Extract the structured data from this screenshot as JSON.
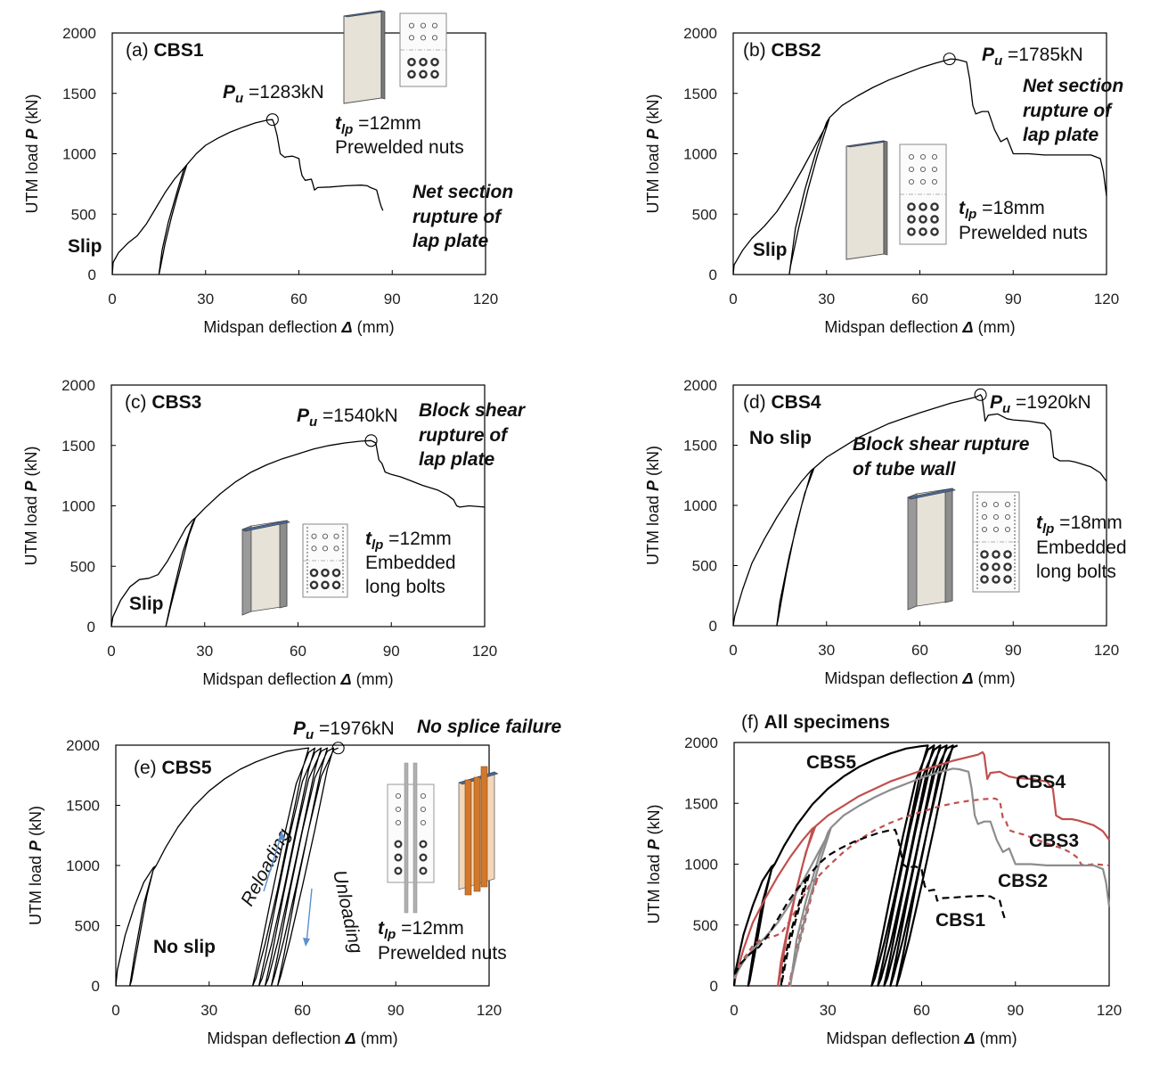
{
  "chart_data": [
    {
      "id": "a",
      "type": "line",
      "panel_label": "(a)",
      "title": "CBS1",
      "xlabel_main": "Midspan deflection ",
      "xlabel_sym": "Δ",
      "xlabel_unit": " (mm)",
      "ylabel_main": "UTM load ",
      "ylabel_sym": "P",
      "ylabel_unit": " (kN)",
      "xlim": [
        0,
        120
      ],
      "ylim": [
        0,
        2000
      ],
      "xticks": [
        "0",
        "30",
        "60",
        "90",
        "120"
      ],
      "yticks": [
        "0",
        "500",
        "1000",
        "1500",
        "2000"
      ],
      "series": [
        {
          "name": "CBS1",
          "color": "#000000",
          "dash": "none",
          "x": [
            0,
            0.3,
            2,
            5,
            8,
            11,
            14,
            17,
            20,
            23,
            24,
            23,
            21,
            18,
            16,
            15,
            15.5,
            17,
            19,
            21,
            23,
            24,
            27,
            30,
            34,
            38,
            42,
            46,
            50,
            51.5,
            52,
            53,
            54,
            55.5,
            56,
            58,
            60,
            60.5,
            61,
            62,
            64,
            64.5,
            65,
            66,
            70,
            75,
            80,
            82,
            83,
            85,
            86,
            86.5,
            87
          ],
          "y": [
            0,
            100,
            180,
            260,
            320,
            420,
            550,
            680,
            790,
            880,
            910,
            870,
            700,
            430,
            200,
            0,
            60,
            260,
            470,
            660,
            830,
            910,
            1000,
            1070,
            1130,
            1180,
            1220,
            1255,
            1280,
            1283,
            1250,
            1150,
            1000,
            970,
            975,
            980,
            960,
            880,
            820,
            780,
            790,
            750,
            700,
            720,
            725,
            735,
            740,
            735,
            720,
            700,
            600,
            560,
            530
          ]
        }
      ],
      "markers": [
        {
          "x": 51.5,
          "y": 1283
        }
      ],
      "annotations": [
        {
          "id": "pu",
          "text_pre": "P",
          "text_sub": "u",
          "text": "=1283kN"
        },
        {
          "id": "tlp",
          "text_pre": "t",
          "text_sub": "lp",
          "text": " =12mm"
        },
        {
          "id": "conn",
          "text": "Prewelded nuts"
        },
        {
          "id": "fail1",
          "text": "Net section"
        },
        {
          "id": "fail2",
          "text": "rupture of"
        },
        {
          "id": "fail3",
          "text": "lap plate"
        },
        {
          "id": "slip",
          "text": "Slip"
        }
      ]
    },
    {
      "id": "b",
      "type": "line",
      "panel_label": "(b)",
      "title": "CBS2",
      "xlabel_main": "Midspan deflection ",
      "xlabel_sym": "Δ",
      "xlabel_unit": " (mm)",
      "ylabel_main": "UTM load ",
      "ylabel_sym": "P",
      "ylabel_unit": " (kN)",
      "xlim": [
        0,
        120
      ],
      "ylim": [
        0,
        2000
      ],
      "xticks": [
        "0",
        "30",
        "60",
        "90",
        "120"
      ],
      "yticks": [
        "0",
        "500",
        "1000",
        "1500",
        "2000"
      ],
      "series": [
        {
          "name": "CBS2",
          "color": "#000000",
          "dash": "none",
          "x": [
            0,
            0.3,
            3,
            6,
            10,
            14,
            18,
            22,
            26,
            30,
            31,
            30,
            27,
            23,
            20,
            18,
            18.5,
            21,
            24,
            27,
            30,
            31,
            35,
            40,
            45,
            50,
            55,
            60,
            65,
            70,
            72,
            75,
            76,
            77,
            78,
            80,
            82,
            84,
            86,
            88,
            90,
            95,
            100,
            105,
            110,
            115,
            118,
            119,
            120
          ],
          "y": [
            0,
            80,
            200,
            300,
            400,
            520,
            680,
            860,
            1050,
            1240,
            1300,
            1260,
            1050,
            700,
            380,
            0,
            80,
            380,
            700,
            980,
            1220,
            1300,
            1400,
            1480,
            1550,
            1610,
            1660,
            1710,
            1750,
            1785,
            1780,
            1760,
            1620,
            1400,
            1330,
            1350,
            1350,
            1200,
            1100,
            1130,
            1000,
            1000,
            990,
            990,
            990,
            990,
            960,
            850,
            650
          ]
        }
      ],
      "markers": [
        {
          "x": 69.5,
          "y": 1785
        }
      ],
      "annotations": [
        {
          "id": "pu",
          "text_pre": "P",
          "text_sub": "u",
          "text": "=1785kN"
        },
        {
          "id": "tlp",
          "text_pre": "t",
          "text_sub": "lp",
          "text": " =18mm"
        },
        {
          "id": "conn",
          "text": "Prewelded nuts"
        },
        {
          "id": "fail1",
          "text": "Net section"
        },
        {
          "id": "fail2",
          "text": "rupture of"
        },
        {
          "id": "fail3",
          "text": "lap plate"
        },
        {
          "id": "slip",
          "text": "Slip"
        }
      ]
    },
    {
      "id": "c",
      "type": "line",
      "panel_label": "(c)",
      "title": "CBS3",
      "xlabel_main": "Midspan deflection ",
      "xlabel_sym": "Δ",
      "xlabel_unit": " (mm)",
      "ylabel_main": "UTM load ",
      "ylabel_sym": "P",
      "ylabel_unit": " (kN)",
      "xlim": [
        0,
        120
      ],
      "ylim": [
        0,
        2000
      ],
      "xticks": [
        "0",
        "30",
        "60",
        "90",
        "120"
      ],
      "yticks": [
        "0",
        "500",
        "1000",
        "1500",
        "2000"
      ],
      "series": [
        {
          "name": "CBS3",
          "color": "#000000",
          "dash": "none",
          "x": [
            0,
            0.5,
            3,
            6,
            9,
            12,
            15,
            18,
            21,
            24,
            26,
            27,
            26,
            23,
            20,
            18,
            17.5,
            19,
            22,
            25,
            27,
            30,
            35,
            40,
            45,
            50,
            55,
            60,
            65,
            70,
            75,
            80,
            83.5,
            85,
            86,
            87,
            88,
            90,
            93,
            96,
            100,
            105,
            108,
            110,
            111,
            112,
            115,
            120
          ],
          "y": [
            0,
            80,
            220,
            330,
            390,
            400,
            430,
            540,
            680,
            820,
            880,
            900,
            850,
            620,
            300,
            60,
            0,
            160,
            460,
            760,
            900,
            980,
            1100,
            1200,
            1280,
            1340,
            1390,
            1430,
            1470,
            1500,
            1520,
            1535,
            1540,
            1520,
            1380,
            1350,
            1280,
            1260,
            1240,
            1210,
            1170,
            1130,
            1090,
            1050,
            1000,
            990,
            1000,
            990
          ]
        }
      ],
      "markers": [
        {
          "x": 83.5,
          "y": 1540
        }
      ],
      "annotations": [
        {
          "id": "pu",
          "text_pre": "P",
          "text_sub": "u",
          "text": "=1540kN"
        },
        {
          "id": "tlp",
          "text_pre": "t",
          "text_sub": "lp",
          "text": " =12mm"
        },
        {
          "id": "conn1",
          "text": "Embedded"
        },
        {
          "id": "conn2",
          "text": "long bolts"
        },
        {
          "id": "fail1",
          "text": "Block shear"
        },
        {
          "id": "fail2",
          "text": "rupture of"
        },
        {
          "id": "fail3",
          "text": "lap plate"
        },
        {
          "id": "slip",
          "text": "Slip"
        }
      ]
    },
    {
      "id": "d",
      "type": "line",
      "panel_label": "(d)",
      "title": "CBS4",
      "xlabel_main": "Midspan deflection ",
      "xlabel_sym": "Δ",
      "xlabel_unit": " (mm)",
      "ylabel_main": "UTM load ",
      "ylabel_sym": "P",
      "ylabel_unit": " (kN)",
      "xlim": [
        0,
        120
      ],
      "ylim": [
        0,
        2000
      ],
      "xticks": [
        "0",
        "30",
        "60",
        "90",
        "120"
      ],
      "yticks": [
        "0",
        "500",
        "1000",
        "1500",
        "2000"
      ],
      "series": [
        {
          "name": "CBS4",
          "color": "#000000",
          "dash": "none",
          "x": [
            0,
            0.5,
            3,
            6,
            10,
            14,
            18,
            22,
            25,
            26,
            25,
            22,
            18,
            15,
            14,
            14.5,
            17,
            20,
            23,
            26,
            30,
            40,
            50,
            60,
            70,
            78,
            79.5,
            80,
            81,
            82,
            85,
            88,
            90,
            95,
            100,
            102,
            103,
            105,
            108,
            110,
            115,
            118,
            120
          ],
          "y": [
            0,
            80,
            300,
            520,
            720,
            900,
            1060,
            1200,
            1290,
            1310,
            1270,
            1000,
            580,
            200,
            0,
            60,
            430,
            800,
            1100,
            1310,
            1400,
            1560,
            1680,
            1770,
            1850,
            1900,
            1920,
            1900,
            1700,
            1750,
            1760,
            1720,
            1710,
            1700,
            1680,
            1620,
            1400,
            1370,
            1370,
            1360,
            1320,
            1270,
            1200
          ]
        }
      ],
      "markers": [
        {
          "x": 79.5,
          "y": 1920
        }
      ],
      "annotations": [
        {
          "id": "pu",
          "text_pre": "P",
          "text_sub": "u",
          "text": "=1920kN"
        },
        {
          "id": "tlp",
          "text_pre": "t",
          "text_sub": "lp",
          "text": " =18mm"
        },
        {
          "id": "conn1",
          "text": "Embedded"
        },
        {
          "id": "conn2",
          "text": "long bolts"
        },
        {
          "id": "fail1",
          "text": "Block shear rupture"
        },
        {
          "id": "fail2",
          "text": "of tube wall"
        },
        {
          "id": "slip",
          "text": "No slip"
        }
      ]
    },
    {
      "id": "e",
      "type": "line",
      "panel_label": "(e)",
      "title": "CBS5",
      "xlabel_main": "Midspan deflection ",
      "xlabel_sym": "Δ",
      "xlabel_unit": " (mm)",
      "ylabel_main": "UTM load ",
      "ylabel_sym": "P",
      "ylabel_unit": " (kN)",
      "xlim": [
        0,
        120
      ],
      "ylim": [
        0,
        2000
      ],
      "xticks": [
        "0",
        "30",
        "60",
        "90",
        "120"
      ],
      "yticks": [
        "0",
        "500",
        "1000",
        "1500",
        "2000"
      ],
      "series": [
        {
          "name": "CBS5",
          "color": "#000000",
          "dash": "none",
          "x": [
            0,
            0.5,
            3,
            6,
            9,
            12,
            13,
            12,
            10,
            7,
            5,
            4.5,
            6,
            9,
            12,
            13,
            16,
            20,
            25,
            30,
            35,
            40,
            45,
            50,
            55,
            60,
            62,
            60,
            56,
            52,
            48,
            45,
            44,
            46,
            50,
            54,
            58,
            62,
            64,
            62,
            58,
            54,
            50,
            47,
            46,
            48,
            52,
            56,
            60,
            64,
            66,
            64,
            60,
            56,
            52,
            49,
            48,
            50,
            54,
            58,
            62,
            66,
            68,
            66,
            62,
            58,
            54,
            51,
            50,
            52,
            56,
            60,
            64,
            68,
            70,
            68,
            64,
            60,
            56,
            53,
            52,
            54,
            58,
            62,
            66,
            70,
            71.5
          ],
          "y": [
            0,
            130,
            420,
            660,
            860,
            980,
            1000,
            960,
            750,
            320,
            40,
            0,
            250,
            680,
            960,
            1000,
            1150,
            1320,
            1490,
            1620,
            1720,
            1800,
            1860,
            1910,
            1950,
            1970,
            1976,
            1800,
            1300,
            800,
            350,
            60,
            0,
            230,
            740,
            1230,
            1680,
            1940,
            1976,
            1800,
            1300,
            800,
            340,
            60,
            0,
            240,
            760,
            1260,
            1700,
            1940,
            1976,
            1800,
            1300,
            820,
            360,
            60,
            0,
            240,
            770,
            1270,
            1720,
            1950,
            1976,
            1800,
            1300,
            830,
            380,
            80,
            0,
            250,
            790,
            1290,
            1730,
            1950,
            1976,
            1800,
            1300,
            830,
            380,
            80,
            0,
            250,
            800,
            1300,
            1740,
            1960,
            1976
          ]
        }
      ],
      "markers": [
        {
          "x": 71.5,
          "y": 1976
        }
      ],
      "annotations": [
        {
          "id": "pu",
          "text_pre": "P",
          "text_sub": "u",
          "text": "=1976kN"
        },
        {
          "id": "tlp",
          "text_pre": "t",
          "text_sub": "lp",
          "text": " =12mm"
        },
        {
          "id": "conn",
          "text": "Prewelded nuts"
        },
        {
          "id": "fail1",
          "text": "No splice failure"
        },
        {
          "id": "slip",
          "text": "No slip"
        },
        {
          "id": "reload",
          "text": "Reloading"
        },
        {
          "id": "unload",
          "text": "Unloading"
        }
      ]
    },
    {
      "id": "f",
      "type": "line",
      "panel_label": "(f)",
      "title": "All specimens",
      "xlabel_main": "Midspan deflection ",
      "xlabel_sym": "Δ",
      "xlabel_unit": " (mm)",
      "ylabel_main": "UTM load ",
      "ylabel_sym": "P",
      "ylabel_unit": " (kN)",
      "xlim": [
        0,
        120
      ],
      "ylim": [
        0,
        2000
      ],
      "xticks": [
        "0",
        "30",
        "60",
        "90",
        "120"
      ],
      "yticks": [
        "0",
        "500",
        "1000",
        "1500",
        "2000"
      ],
      "series": [
        {
          "name": "CBS5",
          "color": "#000000",
          "dash": "none",
          "ref": 4
        },
        {
          "name": "CBS4",
          "color": "#c0504d",
          "dash": "none",
          "ref": 3
        },
        {
          "name": "CBS3",
          "color": "#c0504d",
          "dash": "6,5",
          "ref": 2
        },
        {
          "name": "CBS2",
          "color": "#8c8c8c",
          "dash": "none",
          "ref": 1
        },
        {
          "name": "CBS1",
          "color": "#000000",
          "dash": "8,5",
          "ref": 0
        }
      ],
      "annotations": [
        {
          "id": "l5",
          "text": "CBS5"
        },
        {
          "id": "l4",
          "text": "CBS4"
        },
        {
          "id": "l3",
          "text": "CBS3"
        },
        {
          "id": "l2",
          "text": "CBS2"
        },
        {
          "id": "l1",
          "text": "CBS1"
        }
      ]
    }
  ]
}
